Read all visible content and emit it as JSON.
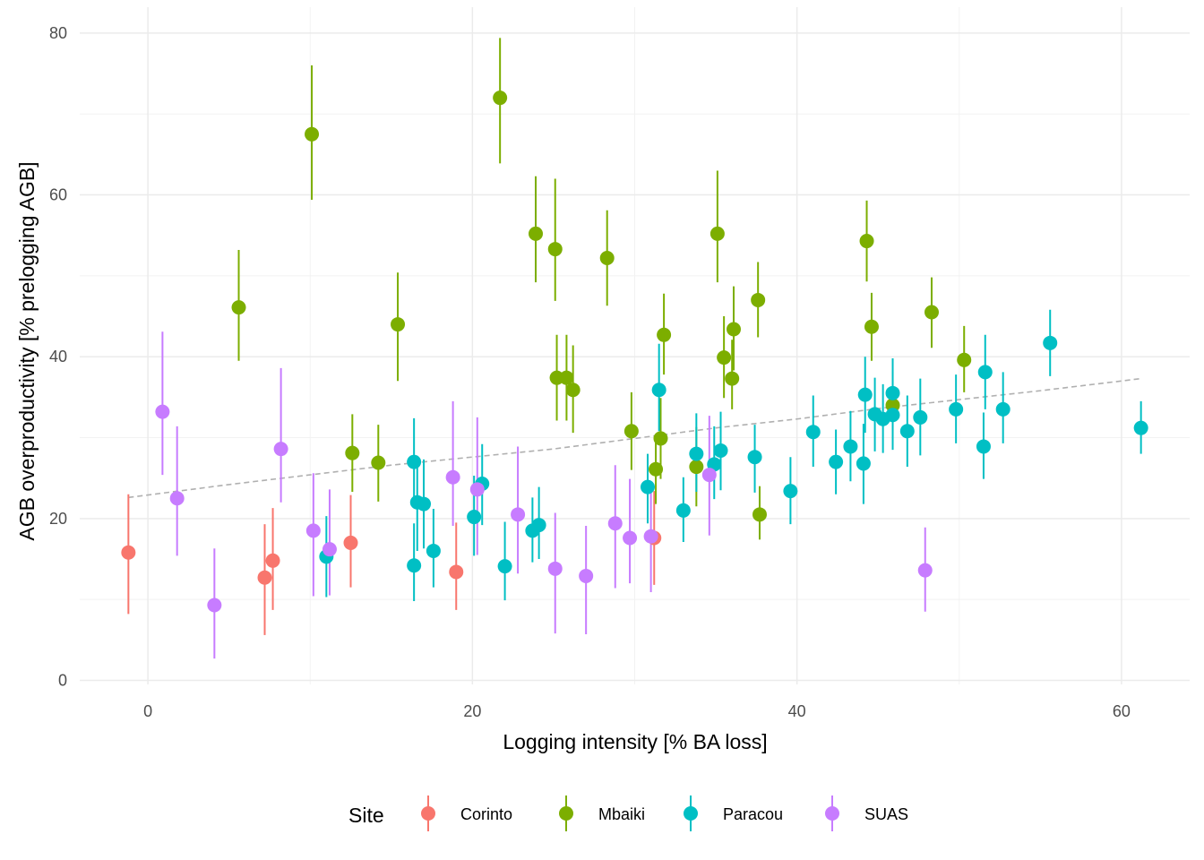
{
  "chart_data": {
    "type": "scatter",
    "title": "",
    "xlabel": "Logging intensity [% BA loss]",
    "ylabel": "AGB overproductivity [% prelogging AGB]",
    "xlim": [
      -4.2,
      64.2
    ],
    "ylim": [
      -0.5,
      83.2
    ],
    "x_ticks": [
      0,
      20,
      40,
      60
    ],
    "y_ticks": [
      0,
      20,
      40,
      60,
      80
    ],
    "grid": true,
    "legend": {
      "title": "Site",
      "position": "bottom"
    },
    "series": [
      {
        "name": "Corinto",
        "color": "#F8766D",
        "points": [
          {
            "x": -1.2,
            "y": 15.8,
            "lo": 8.2,
            "hi": 23.0
          },
          {
            "x": 7.2,
            "y": 12.7,
            "lo": 5.6,
            "hi": 19.3
          },
          {
            "x": 7.7,
            "y": 14.8,
            "lo": 8.7,
            "hi": 21.3
          },
          {
            "x": 12.5,
            "y": 17.0,
            "lo": 11.5,
            "hi": 22.9
          },
          {
            "x": 19.0,
            "y": 13.4,
            "lo": 8.7,
            "hi": 19.5
          },
          {
            "x": 31.2,
            "y": 17.6,
            "lo": 11.8,
            "hi": 23.4
          }
        ]
      },
      {
        "name": "Mbaiki",
        "color": "#7CAE00",
        "points": [
          {
            "x": 5.6,
            "y": 46.1,
            "lo": 39.5,
            "hi": 53.2
          },
          {
            "x": 10.1,
            "y": 67.5,
            "lo": 59.4,
            "hi": 76.0
          },
          {
            "x": 12.6,
            "y": 28.1,
            "lo": 23.3,
            "hi": 32.9
          },
          {
            "x": 14.2,
            "y": 26.9,
            "lo": 22.1,
            "hi": 31.6
          },
          {
            "x": 15.4,
            "y": 44.0,
            "lo": 37.0,
            "hi": 50.4
          },
          {
            "x": 21.7,
            "y": 72.0,
            "lo": 63.9,
            "hi": 79.4
          },
          {
            "x": 23.9,
            "y": 55.2,
            "lo": 49.2,
            "hi": 62.3
          },
          {
            "x": 25.1,
            "y": 53.3,
            "lo": 46.9,
            "hi": 62.0
          },
          {
            "x": 25.2,
            "y": 37.4,
            "lo": 32.1,
            "hi": 42.7
          },
          {
            "x": 25.8,
            "y": 37.4,
            "lo": 32.1,
            "hi": 42.7
          },
          {
            "x": 26.2,
            "y": 35.9,
            "lo": 30.6,
            "hi": 41.4
          },
          {
            "x": 28.3,
            "y": 52.2,
            "lo": 46.3,
            "hi": 58.1
          },
          {
            "x": 29.8,
            "y": 30.8,
            "lo": 26.0,
            "hi": 35.6
          },
          {
            "x": 31.3,
            "y": 26.1,
            "lo": 21.8,
            "hi": 30.4
          },
          {
            "x": 31.6,
            "y": 29.9,
            "lo": 24.9,
            "hi": 34.9
          },
          {
            "x": 31.8,
            "y": 42.7,
            "lo": 37.8,
            "hi": 47.8
          },
          {
            "x": 33.8,
            "y": 26.4,
            "lo": 21.5,
            "hi": 31.3
          },
          {
            "x": 35.1,
            "y": 55.2,
            "lo": 49.2,
            "hi": 63.0
          },
          {
            "x": 35.5,
            "y": 39.9,
            "lo": 34.9,
            "hi": 45.0
          },
          {
            "x": 36.0,
            "y": 37.3,
            "lo": 33.5,
            "hi": 42.1
          },
          {
            "x": 36.1,
            "y": 43.4,
            "lo": 38.3,
            "hi": 48.7
          },
          {
            "x": 37.6,
            "y": 47.0,
            "lo": 42.4,
            "hi": 51.7
          },
          {
            "x": 37.7,
            "y": 20.5,
            "lo": 17.4,
            "hi": 24.0
          },
          {
            "x": 44.3,
            "y": 54.3,
            "lo": 49.3,
            "hi": 59.3
          },
          {
            "x": 44.6,
            "y": 43.7,
            "lo": 39.5,
            "hi": 47.9
          },
          {
            "x": 45.9,
            "y": 34.0,
            "lo": 29.8,
            "hi": 38.2
          },
          {
            "x": 48.3,
            "y": 45.5,
            "lo": 41.1,
            "hi": 49.8
          },
          {
            "x": 50.3,
            "y": 39.6,
            "lo": 35.6,
            "hi": 43.8
          }
        ]
      },
      {
        "name": "Paracou",
        "color": "#00BFC4",
        "points": [
          {
            "x": 11.0,
            "y": 15.3,
            "lo": 10.3,
            "hi": 20.3
          },
          {
            "x": 16.4,
            "y": 14.2,
            "lo": 9.8,
            "hi": 19.4
          },
          {
            "x": 16.4,
            "y": 27.0,
            "lo": 21.8,
            "hi": 32.4
          },
          {
            "x": 16.6,
            "y": 22.0,
            "lo": 16.0,
            "hi": 27.5
          },
          {
            "x": 17.0,
            "y": 21.8,
            "lo": 16.3,
            "hi": 27.3
          },
          {
            "x": 17.6,
            "y": 16.0,
            "lo": 11.5,
            "hi": 21.2
          },
          {
            "x": 20.1,
            "y": 20.2,
            "lo": 15.4,
            "hi": 25.3
          },
          {
            "x": 20.6,
            "y": 24.3,
            "lo": 19.2,
            "hi": 29.2
          },
          {
            "x": 22.0,
            "y": 14.1,
            "lo": 9.9,
            "hi": 19.6
          },
          {
            "x": 23.7,
            "y": 18.5,
            "lo": 14.6,
            "hi": 22.6
          },
          {
            "x": 24.1,
            "y": 19.2,
            "lo": 15.0,
            "hi": 23.9
          },
          {
            "x": 30.8,
            "y": 23.9,
            "lo": 19.4,
            "hi": 28.0
          },
          {
            "x": 31.5,
            "y": 35.9,
            "lo": 30.8,
            "hi": 41.6
          },
          {
            "x": 33.0,
            "y": 21.0,
            "lo": 17.1,
            "hi": 25.1
          },
          {
            "x": 33.8,
            "y": 28.0,
            "lo": 23.3,
            "hi": 33.0
          },
          {
            "x": 34.9,
            "y": 26.7,
            "lo": 22.4,
            "hi": 31.4
          },
          {
            "x": 35.3,
            "y": 28.4,
            "lo": 23.5,
            "hi": 33.2
          },
          {
            "x": 37.4,
            "y": 27.6,
            "lo": 23.2,
            "hi": 31.6
          },
          {
            "x": 39.6,
            "y": 23.4,
            "lo": 19.3,
            "hi": 27.6
          },
          {
            "x": 41.0,
            "y": 30.7,
            "lo": 26.4,
            "hi": 35.2
          },
          {
            "x": 42.4,
            "y": 27.0,
            "lo": 23.0,
            "hi": 31.0
          },
          {
            "x": 43.3,
            "y": 28.9,
            "lo": 24.6,
            "hi": 33.3
          },
          {
            "x": 44.1,
            "y": 26.8,
            "lo": 21.8,
            "hi": 31.7
          },
          {
            "x": 44.2,
            "y": 35.3,
            "lo": 30.6,
            "hi": 40.0
          },
          {
            "x": 44.8,
            "y": 32.9,
            "lo": 28.3,
            "hi": 37.4
          },
          {
            "x": 45.3,
            "y": 32.3,
            "lo": 28.1,
            "hi": 36.6
          },
          {
            "x": 45.9,
            "y": 35.5,
            "lo": 31.3,
            "hi": 39.8
          },
          {
            "x": 45.9,
            "y": 32.8,
            "lo": 28.5,
            "hi": 37.0
          },
          {
            "x": 46.8,
            "y": 30.8,
            "lo": 26.4,
            "hi": 35.2
          },
          {
            "x": 47.6,
            "y": 32.5,
            "lo": 27.8,
            "hi": 37.3
          },
          {
            "x": 49.8,
            "y": 33.5,
            "lo": 29.3,
            "hi": 37.8
          },
          {
            "x": 51.5,
            "y": 28.9,
            "lo": 24.9,
            "hi": 33.1
          },
          {
            "x": 51.6,
            "y": 38.1,
            "lo": 33.5,
            "hi": 42.7
          },
          {
            "x": 52.7,
            "y": 33.5,
            "lo": 29.3,
            "hi": 38.1
          },
          {
            "x": 55.6,
            "y": 41.7,
            "lo": 37.6,
            "hi": 45.8
          },
          {
            "x": 61.2,
            "y": 31.2,
            "lo": 28.0,
            "hi": 34.5
          }
        ]
      },
      {
        "name": "SUAS",
        "color": "#C77CFF",
        "points": [
          {
            "x": 0.9,
            "y": 33.2,
            "lo": 25.4,
            "hi": 43.1
          },
          {
            "x": 1.8,
            "y": 22.5,
            "lo": 15.4,
            "hi": 31.4
          },
          {
            "x": 4.1,
            "y": 9.3,
            "lo": 2.7,
            "hi": 16.3
          },
          {
            "x": 8.2,
            "y": 28.6,
            "lo": 22.0,
            "hi": 38.6
          },
          {
            "x": 10.2,
            "y": 18.5,
            "lo": 10.4,
            "hi": 25.6
          },
          {
            "x": 11.2,
            "y": 16.2,
            "lo": 10.5,
            "hi": 23.6
          },
          {
            "x": 18.8,
            "y": 25.1,
            "lo": 19.1,
            "hi": 34.5
          },
          {
            "x": 20.3,
            "y": 23.6,
            "lo": 15.5,
            "hi": 32.5
          },
          {
            "x": 22.8,
            "y": 20.5,
            "lo": 13.2,
            "hi": 28.9
          },
          {
            "x": 25.1,
            "y": 13.8,
            "lo": 5.8,
            "hi": 20.7
          },
          {
            "x": 27.0,
            "y": 12.9,
            "lo": 5.7,
            "hi": 19.1
          },
          {
            "x": 28.8,
            "y": 19.4,
            "lo": 11.4,
            "hi": 26.6
          },
          {
            "x": 29.7,
            "y": 17.6,
            "lo": 12.0,
            "hi": 24.9
          },
          {
            "x": 31.0,
            "y": 17.8,
            "lo": 10.9,
            "hi": 24.6
          },
          {
            "x": 34.6,
            "y": 25.4,
            "lo": 17.9,
            "hi": 32.7
          },
          {
            "x": 47.9,
            "y": 13.6,
            "lo": 8.5,
            "hi": 18.9
          }
        ]
      }
    ],
    "trend_line": {
      "style": "dashed",
      "color": "#b0b0b0",
      "points": [
        {
          "x": -1.2,
          "y": 22.6
        },
        {
          "x": 5.0,
          "y": 24.2
        },
        {
          "x": 10.0,
          "y": 25.4
        },
        {
          "x": 15.0,
          "y": 26.6
        },
        {
          "x": 20.0,
          "y": 27.6
        },
        {
          "x": 25.0,
          "y": 28.6
        },
        {
          "x": 30.0,
          "y": 29.9
        },
        {
          "x": 35.0,
          "y": 31.2
        },
        {
          "x": 40.0,
          "y": 32.3
        },
        {
          "x": 45.0,
          "y": 33.6
        },
        {
          "x": 50.0,
          "y": 34.7
        },
        {
          "x": 55.0,
          "y": 35.8
        },
        {
          "x": 60.0,
          "y": 37.0
        },
        {
          "x": 61.2,
          "y": 37.3
        }
      ]
    }
  }
}
